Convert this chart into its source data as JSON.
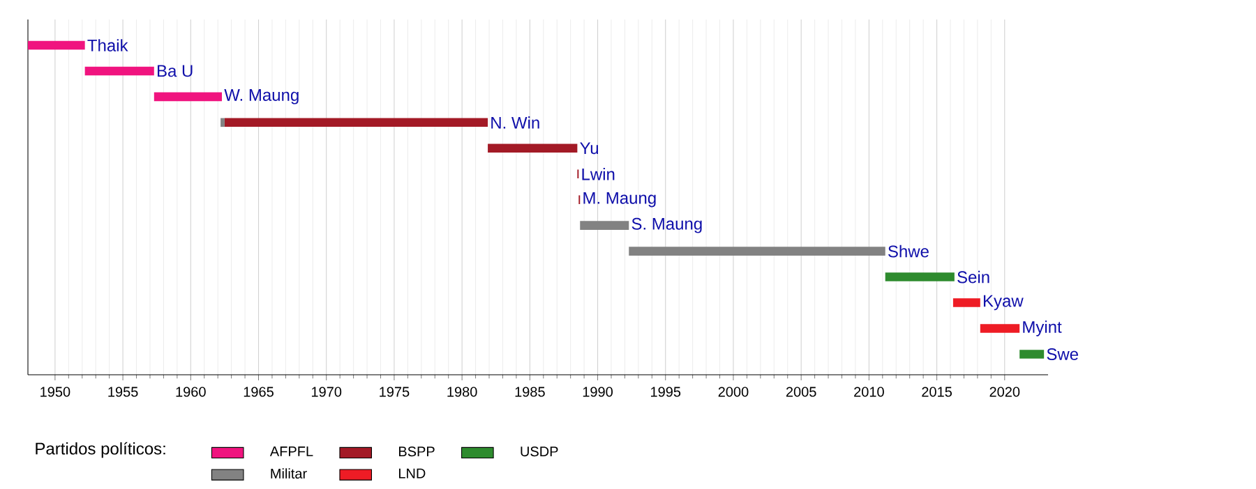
{
  "chart_data": {
    "type": "bar",
    "orientation": "horizontal",
    "categories": [
      "Thaik",
      "Ba U",
      "W. Maung",
      "N. Win",
      "Yu",
      "Lwin",
      "M. Maung",
      "S. Maung",
      "Shwe",
      "Sein",
      "Kyaw",
      "Myint",
      "Swe"
    ],
    "series": [
      {
        "name": "AFPFL",
        "color": "#f0147f",
        "base": [
          1948.0,
          1952.2,
          1957.3,
          null,
          null,
          null,
          null,
          null,
          null,
          null,
          null,
          null,
          null
        ],
        "values": [
          4.2,
          5.1,
          5.0,
          null,
          null,
          null,
          null,
          null,
          null,
          null,
          null,
          null,
          null
        ]
      },
      {
        "name": "BSPP",
        "color": "#a31a26",
        "base": [
          null,
          null,
          null,
          1962.5,
          1981.9,
          1988.5,
          1988.6,
          null,
          null,
          null,
          null,
          null,
          null
        ],
        "values": [
          null,
          null,
          null,
          19.4,
          6.6,
          0.1,
          0.1,
          null,
          null,
          null,
          null,
          null,
          null
        ]
      },
      {
        "name": "USDP",
        "color": "#2e8b2e",
        "base": [
          null,
          null,
          null,
          null,
          null,
          null,
          null,
          null,
          null,
          2011.2,
          null,
          null,
          2021.1
        ],
        "values": [
          null,
          null,
          null,
          null,
          null,
          null,
          null,
          null,
          null,
          5.1,
          null,
          null,
          1.8
        ]
      },
      {
        "name": "Militar",
        "color": "#828282",
        "base": [
          null,
          null,
          null,
          1962.2,
          null,
          null,
          null,
          1988.7,
          1992.3,
          null,
          null,
          null,
          null
        ],
        "values": [
          null,
          null,
          null,
          0.3,
          null,
          null,
          null,
          3.6,
          18.9,
          null,
          null,
          null,
          null
        ]
      },
      {
        "name": "LND",
        "color": "#ee1c25",
        "base": [
          null,
          null,
          null,
          null,
          null,
          null,
          null,
          null,
          null,
          null,
          2016.2,
          2018.2,
          null
        ],
        "values": [
          null,
          null,
          null,
          null,
          null,
          null,
          null,
          null,
          null,
          null,
          2.0,
          2.9,
          null
        ]
      }
    ],
    "legend_title": "Partidos políticos:",
    "legend": "bottom",
    "grid": "x",
    "xlim": [
      1948.0,
      2023.2
    ],
    "xticks": [
      1950,
      1955,
      1960,
      1965,
      1970,
      1975,
      1980,
      1985,
      1990,
      1995,
      2000,
      2005,
      2010,
      2015,
      2020
    ]
  }
}
